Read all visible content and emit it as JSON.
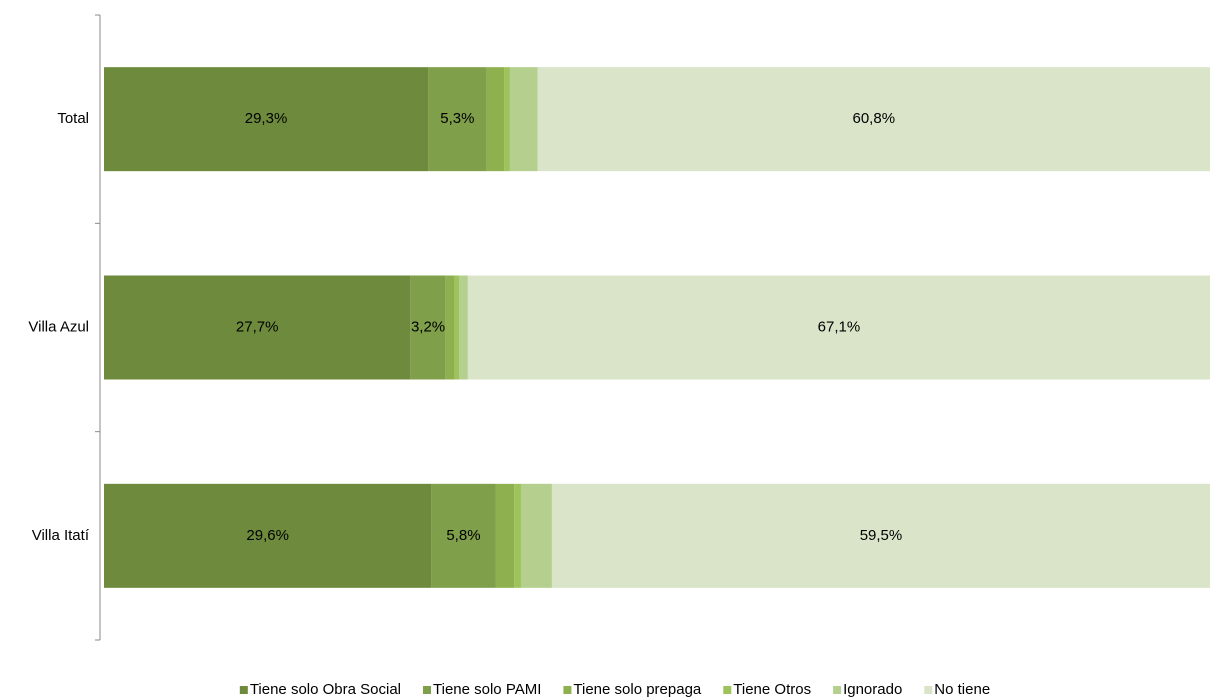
{
  "chart_data": {
    "type": "stacked-bar-horizontal",
    "categories": [
      "Total",
      "Villa Azul",
      "Villa Itatí"
    ],
    "xlim": [
      0,
      100
    ],
    "series": [
      {
        "name": "Tiene solo Obra Social",
        "color": "#6e8b3d",
        "values": [
          29.3,
          27.7,
          29.6
        ],
        "value_labels": [
          "29,3%",
          "27,7%",
          "29,6%"
        ]
      },
      {
        "name": "Tiene solo PAMI",
        "color": "#7f9f4a",
        "values": [
          5.3,
          3.2,
          5.8
        ],
        "value_labels": [
          "5,3%",
          "3,2%",
          "5,8%"
        ]
      },
      {
        "name": "Tiene solo prepaga",
        "color": "#8fb04f",
        "values": [
          1.6,
          0.8,
          1.7
        ],
        "value_labels": [
          null,
          null,
          null
        ]
      },
      {
        "name": "Tiene Otros",
        "color": "#9dc35a",
        "values": [
          0.5,
          0.4,
          0.6
        ],
        "value_labels": [
          null,
          null,
          null
        ]
      },
      {
        "name": "Ignorado",
        "color": "#b5cf8e",
        "values": [
          2.5,
          0.8,
          2.8
        ],
        "value_labels": [
          null,
          null,
          null
        ]
      },
      {
        "name": "No tiene",
        "color": "#d9e4c8",
        "values": [
          60.8,
          67.1,
          59.5
        ],
        "value_labels": [
          "60,8%",
          "67,1%",
          "59,5%"
        ]
      }
    ]
  }
}
